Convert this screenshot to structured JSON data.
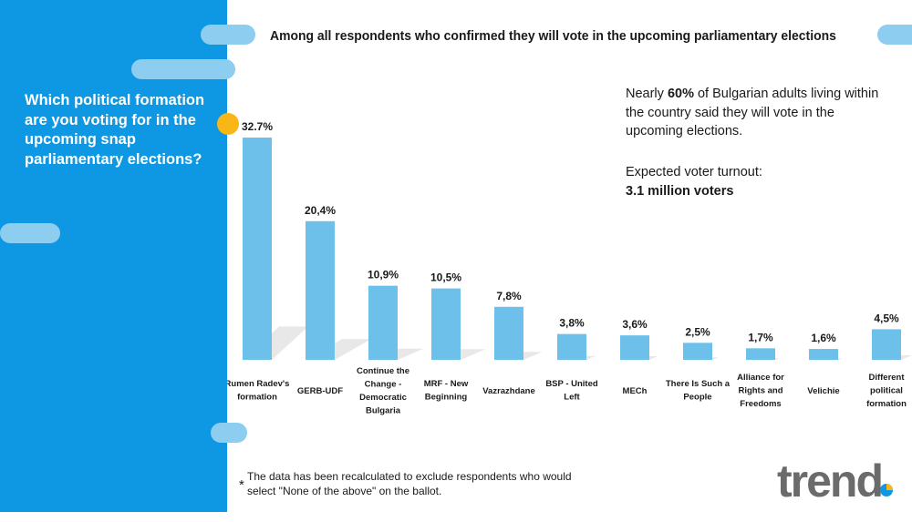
{
  "title": "Among all respondents who confirmed they will vote in the upcoming parliamentary elections",
  "question": "Which political formation are you voting for in the upcoming snap parliamentary elections?",
  "info": {
    "line1_prefix": "Nearly ",
    "line1_bold": "60%",
    "line1_suffix": " of Bulgarian adults living within the country said they will vote in the upcoming elections.",
    "turnout_label": "Expected voter turnout:",
    "turnout_value": "3.1 million voters"
  },
  "footnote": {
    "marker": "*",
    "text": "The data has been recalculated to exclude respondents who would select \"None of the above\" on the ballot."
  },
  "logo": "trend",
  "colors": {
    "bar": "#6cc0ea",
    "panel": "#0e97e3",
    "accent": "#f8b617"
  },
  "chart_data": {
    "type": "bar",
    "categories": [
      [
        "Rumen Radev's",
        "formation"
      ],
      [
        "GERB-UDF"
      ],
      [
        "Continue the",
        "Change -",
        "Democratic",
        "Bulgaria"
      ],
      [
        "MRF - New",
        "Beginning"
      ],
      [
        "Vazrazhdane"
      ],
      [
        "BSP - United",
        "Left"
      ],
      [
        "MECh"
      ],
      [
        "There Is Such a",
        "People"
      ],
      [
        "Alliance for",
        "Rights and",
        "Freedoms"
      ],
      [
        "Velichie"
      ],
      [
        "Different",
        "political",
        "formation"
      ]
    ],
    "values": [
      32.7,
      20.4,
      10.9,
      10.5,
      7.8,
      3.8,
      3.6,
      2.5,
      1.7,
      1.6,
      4.5
    ],
    "labels": [
      "32.7%",
      "20,4%",
      "10,9%",
      "10,5%",
      "7,8%",
      "3,8%",
      "3,6%",
      "2,5%",
      "1,7%",
      "1,6%",
      "4,5%"
    ],
    "title": "Among all respondents who confirmed they will vote in the upcoming parliamentary elections",
    "xlabel": "",
    "ylabel": "",
    "ylim": [
      0,
      32.7
    ]
  }
}
